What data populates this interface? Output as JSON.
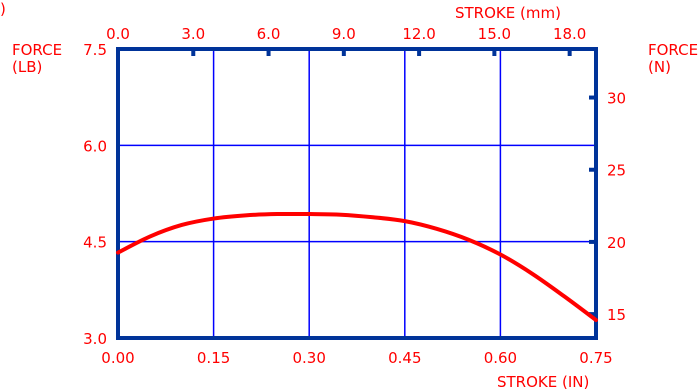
{
  "chart_data": {
    "type": "line",
    "stray_mark": ")",
    "title": "",
    "x_bottom": {
      "label": "STROKE (IN)",
      "lim": [
        0,
        0.75
      ],
      "ticks": [
        "0.00",
        "0.15",
        "0.30",
        "0.45",
        "0.60",
        "0.75"
      ],
      "grid": true
    },
    "x_top": {
      "label": "STROKE (mm)",
      "lim": [
        0,
        19.05
      ],
      "ticks": [
        "0.0",
        "3.0",
        "6.0",
        "9.0",
        "12.0",
        "15.0",
        "18.0"
      ]
    },
    "y_left": {
      "label_line1": "FORCE",
      "label_line2": "(LB)",
      "lim": [
        3.0,
        7.5
      ],
      "ticks": [
        "3.0",
        "4.5",
        "6.0",
        "7.5"
      ],
      "grid": true
    },
    "y_right": {
      "label_line1": "FORCE",
      "label_line2": "(N)",
      "lim": [
        13.345,
        33.362
      ],
      "ticks": [
        "15",
        "20",
        "25",
        "30"
      ]
    },
    "series": [
      {
        "x": [
          0.0,
          0.05,
          0.1,
          0.15,
          0.2,
          0.25,
          0.3,
          0.35,
          0.4,
          0.45,
          0.5,
          0.55,
          0.6,
          0.65,
          0.7,
          0.75
        ],
        "y": [
          4.33,
          4.58,
          4.76,
          4.86,
          4.91,
          4.93,
          4.93,
          4.92,
          4.88,
          4.82,
          4.7,
          4.53,
          4.3,
          4.0,
          3.65,
          3.28
        ]
      }
    ],
    "colors": {
      "axis": "#003399",
      "grid": "#0000ff",
      "curve": "#ff0000",
      "text": "#ff0000"
    }
  }
}
